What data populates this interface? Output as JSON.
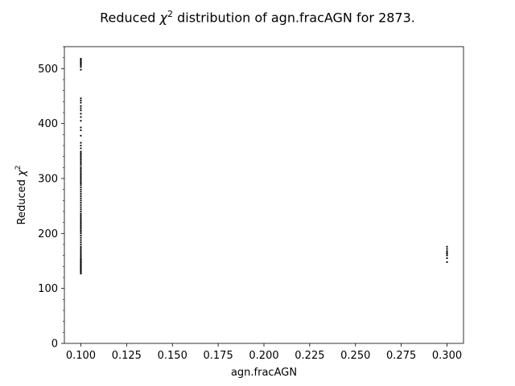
{
  "chart_data": {
    "type": "scatter",
    "title": {
      "prefix": "Reduced ",
      "symbol": "χ",
      "sup": "2",
      "suffix": " distribution of agn.fracAGN for 2873."
    },
    "xlabel": "agn.fracAGN",
    "ylabel": {
      "prefix": "Reduced ",
      "symbol": "χ",
      "sup": "2"
    },
    "xlim": [
      0.091,
      0.309
    ],
    "ylim": [
      0,
      540
    ],
    "x_ticks": [
      0.1,
      0.125,
      0.15,
      0.175,
      0.2,
      0.225,
      0.25,
      0.275,
      0.3
    ],
    "x_tick_labels": [
      "0.100",
      "0.125",
      "0.150",
      "0.175",
      "0.200",
      "0.225",
      "0.250",
      "0.275",
      "0.300"
    ],
    "y_ticks": [
      0,
      100,
      200,
      300,
      400,
      500
    ],
    "y_tick_labels": [
      "0",
      "100",
      "200",
      "300",
      "400",
      "500"
    ],
    "y_minor_step": 20,
    "grid": false,
    "marker_color": "#000000",
    "series": [
      {
        "x": [
          0.1,
          0.1,
          0.1,
          0.1,
          0.1,
          0.1,
          0.1,
          0.1,
          0.1,
          0.1,
          0.1,
          0.1,
          0.1,
          0.1,
          0.1,
          0.1,
          0.1,
          0.1,
          0.1,
          0.1,
          0.1,
          0.1,
          0.1,
          0.1,
          0.1,
          0.1,
          0.1,
          0.1,
          0.1,
          0.1,
          0.1,
          0.1,
          0.1,
          0.1,
          0.1,
          0.1,
          0.1,
          0.1,
          0.1,
          0.1,
          0.1,
          0.1,
          0.1,
          0.1,
          0.1,
          0.1,
          0.1,
          0.1,
          0.1,
          0.1,
          0.1,
          0.1,
          0.1,
          0.1,
          0.1,
          0.1,
          0.1,
          0.1,
          0.1,
          0.1,
          0.1,
          0.1,
          0.1,
          0.1,
          0.1,
          0.1,
          0.1,
          0.1,
          0.1,
          0.1,
          0.1,
          0.1,
          0.1,
          0.1,
          0.1,
          0.1,
          0.1,
          0.1,
          0.1,
          0.1,
          0.1,
          0.1,
          0.1,
          0.1,
          0.1,
          0.1,
          0.1,
          0.1,
          0.1,
          0.1,
          0.1,
          0.1,
          0.1,
          0.1,
          0.1,
          0.1,
          0.1,
          0.3,
          0.3,
          0.3,
          0.3,
          0.3,
          0.3,
          0.3,
          0.3
        ],
        "y": [
          127,
          129,
          131,
          133,
          135,
          137,
          139,
          141,
          143,
          145,
          147,
          149,
          151,
          153,
          155,
          158,
          161,
          164,
          167,
          170,
          173,
          176,
          180,
          184,
          188,
          192,
          196,
          200,
          203,
          206,
          209,
          212,
          215,
          218,
          221,
          224,
          227,
          230,
          233,
          236,
          240,
          244,
          248,
          252,
          256,
          260,
          264,
          268,
          272,
          276,
          280,
          284,
          288,
          291,
          294,
          297,
          300,
          303,
          306,
          309,
          312,
          315,
          318,
          321,
          325,
          328,
          331,
          334,
          337,
          340,
          343,
          346,
          349,
          355,
          360,
          365,
          378,
          388,
          393,
          405,
          412,
          418,
          424,
          428,
          432,
          438,
          442,
          446,
          498,
          503,
          506,
          508,
          510,
          512,
          514,
          516,
          518,
          148,
          155,
          160,
          163,
          165,
          168,
          172,
          176
        ]
      }
    ]
  }
}
